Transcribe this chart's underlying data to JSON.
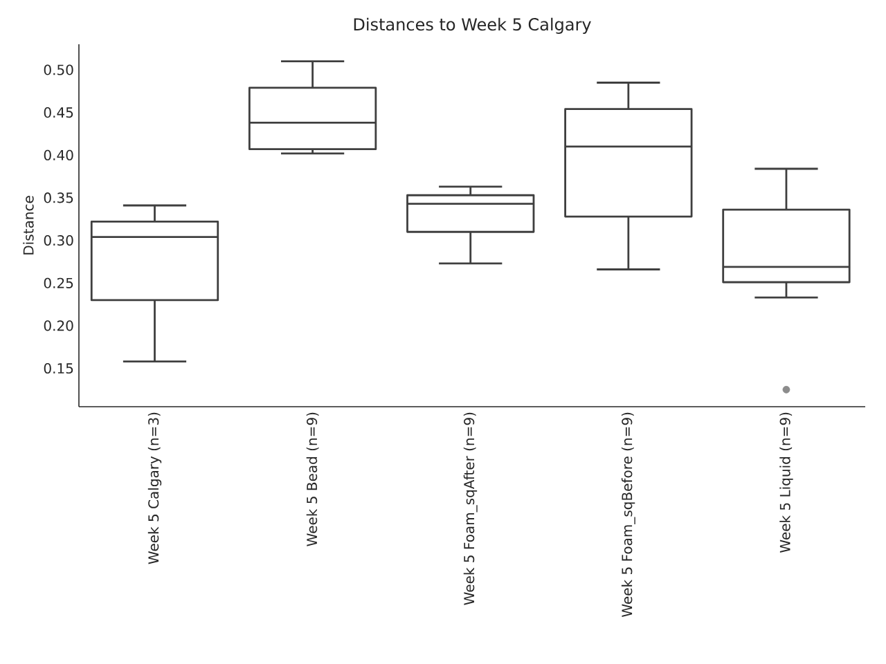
{
  "chart_data": {
    "type": "box",
    "title": "Distances to Week 5 Calgary",
    "ylabel": "Distance",
    "categories": [
      "Week 5 Calgary (n=3)",
      "Week 5 Bead (n=9)",
      "Week 5 Foam_sqAfter (n=9)",
      "Week 5 Foam_sqBefore (n=9)",
      "Week 5 Liquid (n=9)"
    ],
    "boxes": [
      {
        "low": 0.158,
        "q1": 0.23,
        "median": 0.304,
        "q3": 0.322,
        "high": 0.341
      },
      {
        "low": 0.402,
        "q1": 0.407,
        "median": 0.438,
        "q3": 0.479,
        "high": 0.51
      },
      {
        "low": 0.273,
        "q1": 0.31,
        "median": 0.343,
        "q3": 0.353,
        "high": 0.363
      },
      {
        "low": 0.266,
        "q1": 0.328,
        "median": 0.41,
        "q3": 0.454,
        "high": 0.485
      },
      {
        "low": 0.233,
        "q1": 0.251,
        "median": 0.269,
        "q3": 0.336,
        "high": 0.384,
        "outliers": [
          0.125
        ]
      }
    ],
    "color": "#3f3f3f",
    "ylim": [
      0.105,
      0.53
    ],
    "yticks": [
      {
        "value": 0.15,
        "label": "0.15"
      },
      {
        "value": 0.2,
        "label": "0.20"
      },
      {
        "value": 0.25,
        "label": "0.25"
      },
      {
        "value": 0.3,
        "label": "0.30"
      },
      {
        "value": 0.35,
        "label": "0.35"
      },
      {
        "value": 0.4,
        "label": "0.40"
      },
      {
        "value": 0.45,
        "label": "0.45"
      },
      {
        "value": 0.5,
        "label": "0.50"
      }
    ],
    "marker": "circle"
  }
}
